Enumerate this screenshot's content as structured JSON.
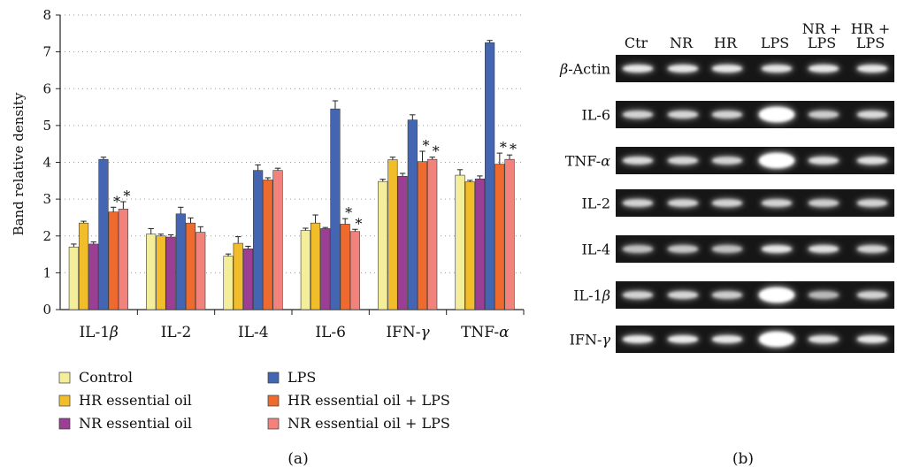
{
  "chart_data": {
    "type": "bar",
    "ylabel": "Band relative density",
    "ylim": [
      0,
      8
    ],
    "yticks": [
      0,
      1,
      2,
      3,
      4,
      5,
      6,
      7,
      8
    ],
    "grid": "horizontal dotted",
    "legend_position": "bottom",
    "categories": [
      "IL-1β",
      "IL-2",
      "IL-4",
      "IL-6",
      "IFN-γ",
      "TNF-α"
    ],
    "category_labels": [
      {
        "base": "IL-1",
        "greek": "β"
      },
      {
        "base": "IL-2",
        "greek": ""
      },
      {
        "base": "IL-4",
        "greek": ""
      },
      {
        "base": "IL-6",
        "greek": ""
      },
      {
        "base": "IFN-",
        "greek": "γ"
      },
      {
        "base": "TNF-",
        "greek": "α"
      }
    ],
    "series": [
      {
        "name": "Control",
        "color": "#f4ee9a",
        "values": [
          1.7,
          2.05,
          1.45,
          2.15,
          3.48,
          3.65
        ],
        "errors": [
          0.08,
          0.15,
          0.06,
          0.06,
          0.06,
          0.15
        ]
      },
      {
        "name": "HR essential oil",
        "color": "#f2bd2b",
        "values": [
          2.35,
          2.0,
          1.8,
          2.35,
          4.07,
          3.47
        ],
        "errors": [
          0.05,
          0.05,
          0.18,
          0.22,
          0.07,
          0.04
        ]
      },
      {
        "name": "NR essential oil",
        "color": "#9a3f94",
        "values": [
          1.78,
          1.97,
          1.65,
          2.2,
          3.62,
          3.55
        ],
        "errors": [
          0.06,
          0.06,
          0.07,
          0.03,
          0.08,
          0.08
        ]
      },
      {
        "name": "LPS",
        "color": "#4466b2",
        "values": [
          4.08,
          2.6,
          3.78,
          5.45,
          5.15,
          7.25
        ],
        "errors": [
          0.06,
          0.18,
          0.15,
          0.22,
          0.14,
          0.06
        ]
      },
      {
        "name": "HR essential oil + LPS",
        "color": "#ee6a2e",
        "values": [
          2.65,
          2.35,
          3.52,
          2.32,
          4.02,
          3.95
        ],
        "errors": [
          0.13,
          0.14,
          0.06,
          0.15,
          0.28,
          0.3
        ]
      },
      {
        "name": "NR essential oil + LPS",
        "color": "#f2827c",
        "values": [
          2.73,
          2.1,
          3.78,
          2.12,
          4.08,
          4.08
        ],
        "errors": [
          0.2,
          0.15,
          0.06,
          0.06,
          0.06,
          0.12
        ]
      }
    ],
    "significance_marker": "*",
    "significance": [
      {
        "category": 0,
        "series": 4
      },
      {
        "category": 0,
        "series": 5
      },
      {
        "category": 3,
        "series": 4
      },
      {
        "category": 3,
        "series": 5
      },
      {
        "category": 4,
        "series": 4
      },
      {
        "category": 4,
        "series": 5
      },
      {
        "category": 5,
        "series": 4
      },
      {
        "category": 5,
        "series": 5
      }
    ]
  },
  "panel_a_label": "(a)",
  "panel_b_label": "(b)",
  "gel": {
    "lanes": [
      {
        "lines": [
          "Ctr"
        ]
      },
      {
        "lines": [
          "NR"
        ]
      },
      {
        "lines": [
          "HR"
        ]
      },
      {
        "lines": [
          "LPS"
        ]
      },
      {
        "lines": [
          "NR +",
          "LPS"
        ]
      },
      {
        "lines": [
          "HR +",
          "LPS"
        ]
      }
    ],
    "rows": [
      {
        "base": "",
        "greek": "β",
        "suffix": "-Actin",
        "intensity": [
          0.85,
          0.85,
          0.85,
          0.82,
          0.85,
          0.85
        ]
      },
      {
        "base": "IL-6",
        "greek": "",
        "suffix": "",
        "intensity": [
          0.7,
          0.72,
          0.7,
          1.0,
          0.65,
          0.75
        ]
      },
      {
        "base": "TNF-",
        "greek": "α",
        "suffix": "",
        "intensity": [
          0.75,
          0.72,
          0.7,
          1.0,
          0.8,
          0.8
        ]
      },
      {
        "base": "IL-2",
        "greek": "",
        "suffix": "",
        "intensity": [
          0.7,
          0.7,
          0.7,
          0.7,
          0.65,
          0.7
        ]
      },
      {
        "base": "IL-4",
        "greek": "",
        "suffix": "",
        "intensity": [
          0.55,
          0.6,
          0.55,
          0.85,
          0.8,
          0.7
        ]
      },
      {
        "base": "IL-1",
        "greek": "β",
        "suffix": "",
        "intensity": [
          0.7,
          0.72,
          0.65,
          1.0,
          0.5,
          0.7
        ]
      },
      {
        "base": "IFN-",
        "greek": "γ",
        "suffix": "",
        "intensity": [
          0.88,
          0.88,
          0.85,
          0.95,
          0.82,
          0.85
        ]
      }
    ]
  }
}
